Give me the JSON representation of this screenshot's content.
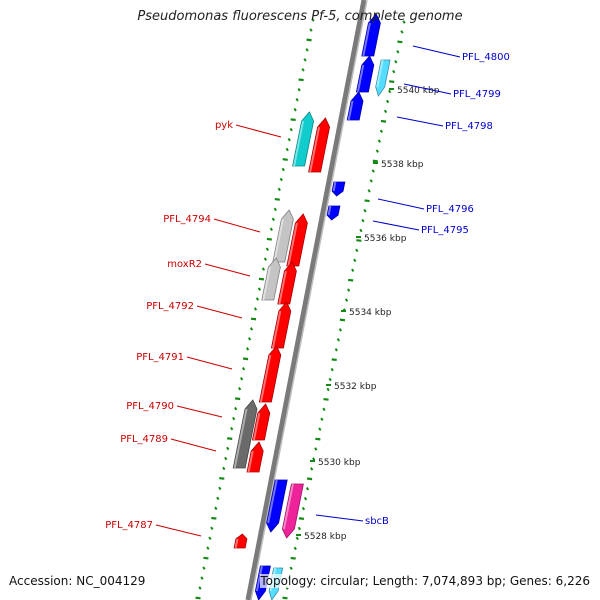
{
  "header": {
    "title": "Pseudomonas fluorescens Pf-5, complete genome"
  },
  "footer": {
    "accession": "Accession: NC_004129",
    "summary": "Topology: circular; Length: 7,074,893 bp; Genes: 6,226"
  },
  "colors": {
    "backbone_dark": "#7a7a7a",
    "backbone_light": "#bdbdbd",
    "tick_green": "#138a13",
    "label_red": "#cc0000",
    "label_blue": "#0000cc",
    "gene_red": "#ff0000",
    "gene_blue": "#0000ff",
    "gene_cyan": "#11cccc",
    "gene_light_cyan": "#55ddff",
    "gene_light_gray": "#c4c4c4",
    "gene_dark_gray": "#6a6a6a",
    "gene_magenta": "#ee2299"
  },
  "scale_labels": [
    "5540 kbp",
    "5538 kbp",
    "5536 kbp",
    "5534 kbp",
    "5532 kbp",
    "5530 kbp",
    "5528 kbp"
  ],
  "gene_labels_left": [
    "pyk",
    "PFL_4794",
    "moxR2",
    "PFL_4792",
    "PFL_4791",
    "PFL_4790",
    "PFL_4789",
    "PFL_4787"
  ],
  "gene_labels_right": [
    "PFL_4800",
    "PFL_4799",
    "PFL_4798",
    "PFL_4796",
    "PFL_4795",
    "sbcB"
  ]
}
